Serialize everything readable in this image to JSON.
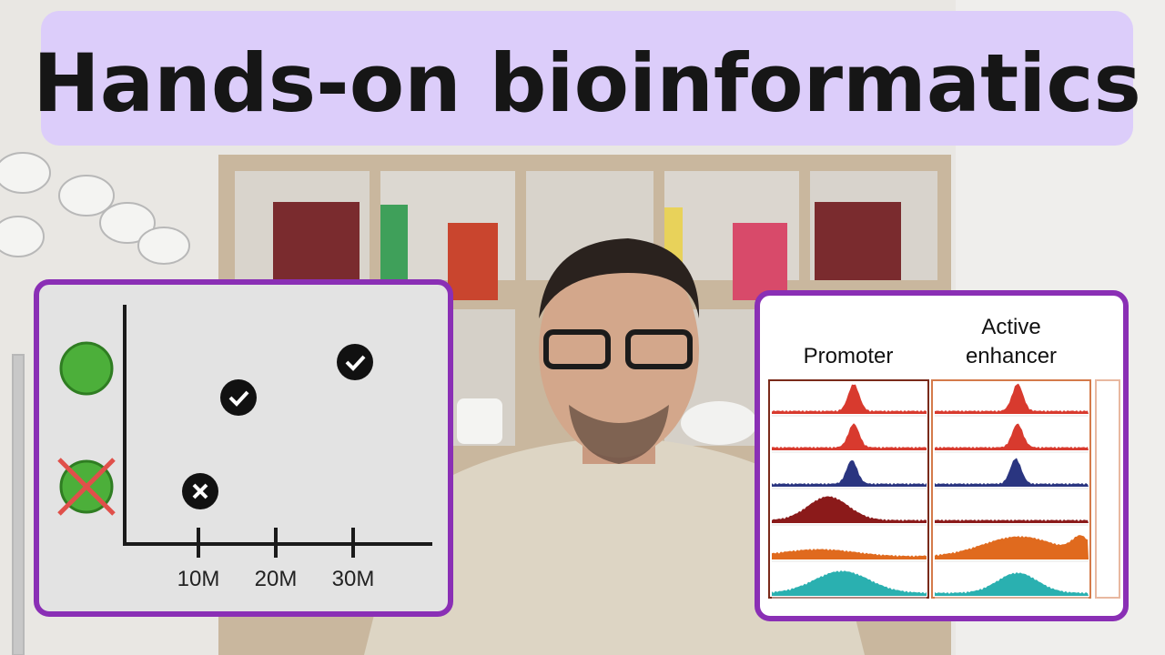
{
  "header": {
    "title": "Hands-on bioinformatics"
  },
  "left_panel": {
    "x_ticks": [
      "10M",
      "20M",
      "30M"
    ]
  },
  "right_panel": {
    "column_titles": [
      [
        "Promoter"
      ],
      [
        "Active",
        "enhancer"
      ]
    ]
  }
}
